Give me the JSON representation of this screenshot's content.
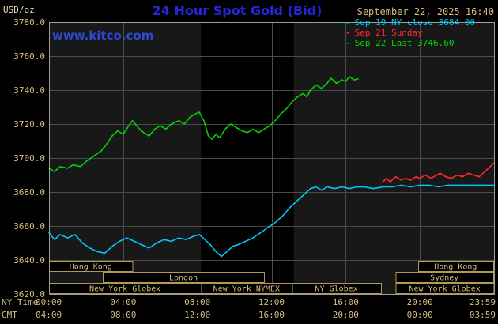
{
  "header": {
    "units_label": "USD/oz",
    "title": "24 Hour Spot Gold (Bid)",
    "datetime": "September 22, 2025 16:40",
    "watermark": "www.kitco.com",
    "legend_marker": "-",
    "legend": [
      {
        "label": "Sep 19 NY close 3684.00",
        "color": "#00c8ff"
      },
      {
        "label": "Sep 21 Sunday",
        "color": "#ff2a2a"
      },
      {
        "label": "Sep 22 Last 3746.60",
        "color": "#00d400"
      }
    ]
  },
  "axes": {
    "ny_time_label": "NY Time",
    "gmt_label": "GMT",
    "y_ticks": [
      "3780.0",
      "3760.0",
      "3740.0",
      "3720.0",
      "3700.0",
      "3680.0",
      "3660.0",
      "3640.0",
      "3620.0"
    ],
    "x_ticks": [
      {
        "hour": 0,
        "ny": "00:00",
        "gmt": "04:00"
      },
      {
        "hour": 4,
        "ny": "04:00",
        "gmt": "08:00"
      },
      {
        "hour": 8,
        "ny": "08:00",
        "gmt": "12:00"
      },
      {
        "hour": 12,
        "ny": "12:00",
        "gmt": "16:00"
      },
      {
        "hour": 16,
        "ny": "16:00",
        "gmt": "20:00"
      },
      {
        "hour": 20,
        "ny": "20:00",
        "gmt": "00:00"
      },
      {
        "hour": 23.983,
        "ny": "23:59",
        "gmt": "03:59"
      }
    ]
  },
  "colors": {
    "title_blue": "#2525dd",
    "link_blue": "#2d49cc",
    "tan": "#d6bd7e",
    "tan_bright": "#e8dcae",
    "grid": "#4b4b4b",
    "frame": "#9e9e9e",
    "plot_bg": "#181818",
    "band_bg": "#000000",
    "session_border": "#b29a55"
  },
  "chart_data": {
    "type": "line",
    "title": "24 Hour Spot Gold (Bid)",
    "ylabel": "USD/oz",
    "xlabel": "NY Time (hours)",
    "ylim": [
      3620,
      3780
    ],
    "y_gridline_step": 20,
    "xlim": [
      0,
      24
    ],
    "last_price": 3746.6,
    "prev_close": 3684.0,
    "shaded_band": {
      "x0": 8.2,
      "x1": 13.2
    },
    "series": [
      {
        "id": "sep19",
        "name": "Sep 19 NY close",
        "color": "#00c8ff",
        "points": [
          [
            0,
            3656
          ],
          [
            0.3,
            3652
          ],
          [
            0.6,
            3655
          ],
          [
            1,
            3653
          ],
          [
            1.4,
            3655
          ],
          [
            1.8,
            3650
          ],
          [
            2.2,
            3647
          ],
          [
            2.6,
            3645
          ],
          [
            3,
            3644
          ],
          [
            3.4,
            3648
          ],
          [
            3.8,
            3651
          ],
          [
            4.2,
            3653
          ],
          [
            4.6,
            3651
          ],
          [
            5,
            3649
          ],
          [
            5.4,
            3647
          ],
          [
            5.8,
            3650
          ],
          [
            6.2,
            3652
          ],
          [
            6.6,
            3651
          ],
          [
            7,
            3653
          ],
          [
            7.4,
            3652
          ],
          [
            7.8,
            3654
          ],
          [
            8.1,
            3655
          ],
          [
            8.4,
            3652
          ],
          [
            8.7,
            3649
          ],
          [
            9,
            3645
          ],
          [
            9.3,
            3642
          ],
          [
            9.6,
            3645
          ],
          [
            9.9,
            3648
          ],
          [
            10.2,
            3649
          ],
          [
            10.6,
            3651
          ],
          [
            11,
            3653
          ],
          [
            11.4,
            3656
          ],
          [
            11.8,
            3659
          ],
          [
            12.2,
            3662
          ],
          [
            12.6,
            3666
          ],
          [
            13,
            3671
          ],
          [
            13.4,
            3675
          ],
          [
            13.8,
            3679
          ],
          [
            14.1,
            3682
          ],
          [
            14.4,
            3683
          ],
          [
            14.7,
            3681
          ],
          [
            15,
            3683
          ],
          [
            15.4,
            3682
          ],
          [
            15.8,
            3683
          ],
          [
            16.2,
            3682
          ],
          [
            16.6,
            3683
          ],
          [
            17,
            3683
          ],
          [
            17.5,
            3682
          ],
          [
            18,
            3683
          ],
          [
            18.5,
            3683
          ],
          [
            19,
            3684
          ],
          [
            19.5,
            3683
          ],
          [
            20,
            3684
          ],
          [
            20.5,
            3684
          ],
          [
            21,
            3683
          ],
          [
            21.5,
            3684
          ],
          [
            22,
            3684
          ],
          [
            22.5,
            3684
          ],
          [
            23,
            3684
          ],
          [
            23.5,
            3684
          ],
          [
            23.98,
            3684
          ]
        ]
      },
      {
        "id": "sep21",
        "name": "Sep 21 Sunday",
        "color": "#ff2a2a",
        "points": [
          [
            18,
            3686
          ],
          [
            18.2,
            3688
          ],
          [
            18.4,
            3686
          ],
          [
            18.7,
            3689
          ],
          [
            19,
            3687
          ],
          [
            19.2,
            3688
          ],
          [
            19.5,
            3687
          ],
          [
            19.8,
            3689
          ],
          [
            20,
            3688
          ],
          [
            20.3,
            3690
          ],
          [
            20.6,
            3688
          ],
          [
            20.9,
            3690
          ],
          [
            21.1,
            3691
          ],
          [
            21.4,
            3689
          ],
          [
            21.7,
            3688
          ],
          [
            22,
            3690
          ],
          [
            22.3,
            3689
          ],
          [
            22.6,
            3691
          ],
          [
            22.9,
            3690
          ],
          [
            23.2,
            3689
          ],
          [
            23.5,
            3692
          ],
          [
            23.7,
            3694
          ],
          [
            23.98,
            3697
          ]
        ]
      },
      {
        "id": "sep22",
        "name": "Sep 22 Last",
        "color": "#00d400",
        "points": [
          [
            0,
            3694
          ],
          [
            0.3,
            3692
          ],
          [
            0.6,
            3695
          ],
          [
            1,
            3694
          ],
          [
            1.3,
            3696
          ],
          [
            1.7,
            3695
          ],
          [
            2,
            3698
          ],
          [
            2.4,
            3701
          ],
          [
            2.8,
            3704
          ],
          [
            3.1,
            3708
          ],
          [
            3.4,
            3713
          ],
          [
            3.7,
            3716
          ],
          [
            4,
            3714
          ],
          [
            4.3,
            3719
          ],
          [
            4.5,
            3722
          ],
          [
            4.8,
            3718
          ],
          [
            5.1,
            3715
          ],
          [
            5.4,
            3713
          ],
          [
            5.7,
            3717
          ],
          [
            6,
            3719
          ],
          [
            6.3,
            3717
          ],
          [
            6.6,
            3720
          ],
          [
            7,
            3722
          ],
          [
            7.3,
            3720
          ],
          [
            7.6,
            3724
          ],
          [
            7.9,
            3726
          ],
          [
            8.1,
            3727
          ],
          [
            8.35,
            3722
          ],
          [
            8.6,
            3713
          ],
          [
            8.8,
            3711
          ],
          [
            9,
            3714
          ],
          [
            9.2,
            3712
          ],
          [
            9.5,
            3717
          ],
          [
            9.8,
            3720
          ],
          [
            10.1,
            3718
          ],
          [
            10.4,
            3716
          ],
          [
            10.7,
            3715
          ],
          [
            11,
            3717
          ],
          [
            11.3,
            3715
          ],
          [
            11.6,
            3717
          ],
          [
            11.9,
            3719
          ],
          [
            12.2,
            3722
          ],
          [
            12.5,
            3726
          ],
          [
            12.8,
            3729
          ],
          [
            13.1,
            3733
          ],
          [
            13.4,
            3736
          ],
          [
            13.7,
            3738
          ],
          [
            13.9,
            3736
          ],
          [
            14.1,
            3740
          ],
          [
            14.4,
            3743
          ],
          [
            14.7,
            3741
          ],
          [
            15,
            3744
          ],
          [
            15.2,
            3747
          ],
          [
            15.5,
            3744
          ],
          [
            15.8,
            3746
          ],
          [
            16,
            3745
          ],
          [
            16.2,
            3748
          ],
          [
            16.45,
            3746
          ],
          [
            16.67,
            3746.6
          ]
        ]
      }
    ],
    "sessions": [
      {
        "row": 0,
        "x0": 0,
        "x1": 4.5,
        "label": "Hong Kong"
      },
      {
        "row": 0,
        "x0": 19.9,
        "x1": 23.95,
        "label": "Hong Kong"
      },
      {
        "row": 1,
        "x0": 2.9,
        "x1": 11.6,
        "label": "London"
      },
      {
        "row": 1,
        "x0": 18.7,
        "x1": 23.95,
        "label": "Sydney"
      },
      {
        "row": 2,
        "x0": 0,
        "x1": 8.2,
        "label": "New York Globex"
      },
      {
        "row": 2,
        "x0": 8.2,
        "x1": 13.1,
        "label": "New York NYMEX"
      },
      {
        "row": 2,
        "x0": 13.1,
        "x1": 17.9,
        "label": "NY Globex"
      },
      {
        "row": 2,
        "x0": 18.7,
        "x1": 23.98,
        "label": "New York Globex"
      }
    ]
  }
}
